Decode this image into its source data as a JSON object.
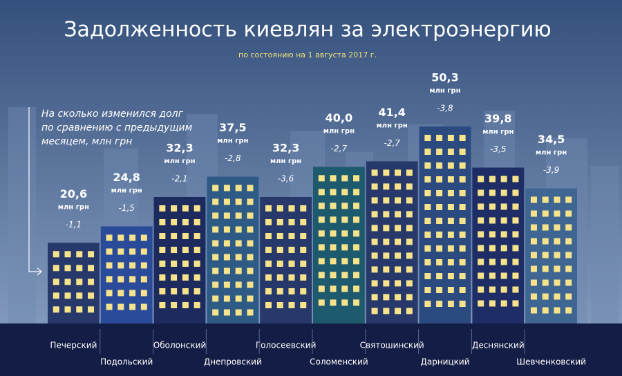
{
  "chart_data": {
    "type": "bar",
    "title": "Задолженность киевлян за электроэнергию",
    "subtitle": "по состоянию на 1 августа 2017 г.",
    "annotation": [
      "На сколько изменился долг",
      "по сравнению с предыдущим",
      "месяцем, млн грн"
    ],
    "unit_label": "млн грн",
    "categories": [
      "Печерский",
      "Подольский",
      "Оболонский",
      "Днепровский",
      "Голосеевский",
      "Соломенский",
      "Святошинский",
      "Дарницкий",
      "Деснянский",
      "Шевченковский"
    ],
    "values": [
      20.6,
      24.8,
      32.3,
      37.5,
      32.3,
      40.0,
      41.4,
      50.3,
      39.8,
      34.5
    ],
    "value_labels": [
      "20,6",
      "24,8",
      "32,3",
      "37,5",
      "32,3",
      "40,0",
      "41,4",
      "50,3",
      "39,8",
      "34,5"
    ],
    "changes": [
      -1.1,
      -1.5,
      -2.1,
      -2.8,
      -3.6,
      -2.7,
      -2.7,
      -3.8,
      -3.5,
      -3.9
    ],
    "change_labels": [
      "-1,1",
      "-1,5",
      "-2,1",
      "-2,8",
      "-3,6",
      "-2,7",
      "-2,7",
      "-3,8",
      "-3,5",
      "-3,9"
    ],
    "colors": [
      "#27386b",
      "#2a4a9a",
      "#1c2a5e",
      "#2e5b86",
      "#27386b",
      "#1d5a6e",
      "#27386b",
      "#2a4a80",
      "#1f2d66",
      "#3f6692"
    ]
  }
}
